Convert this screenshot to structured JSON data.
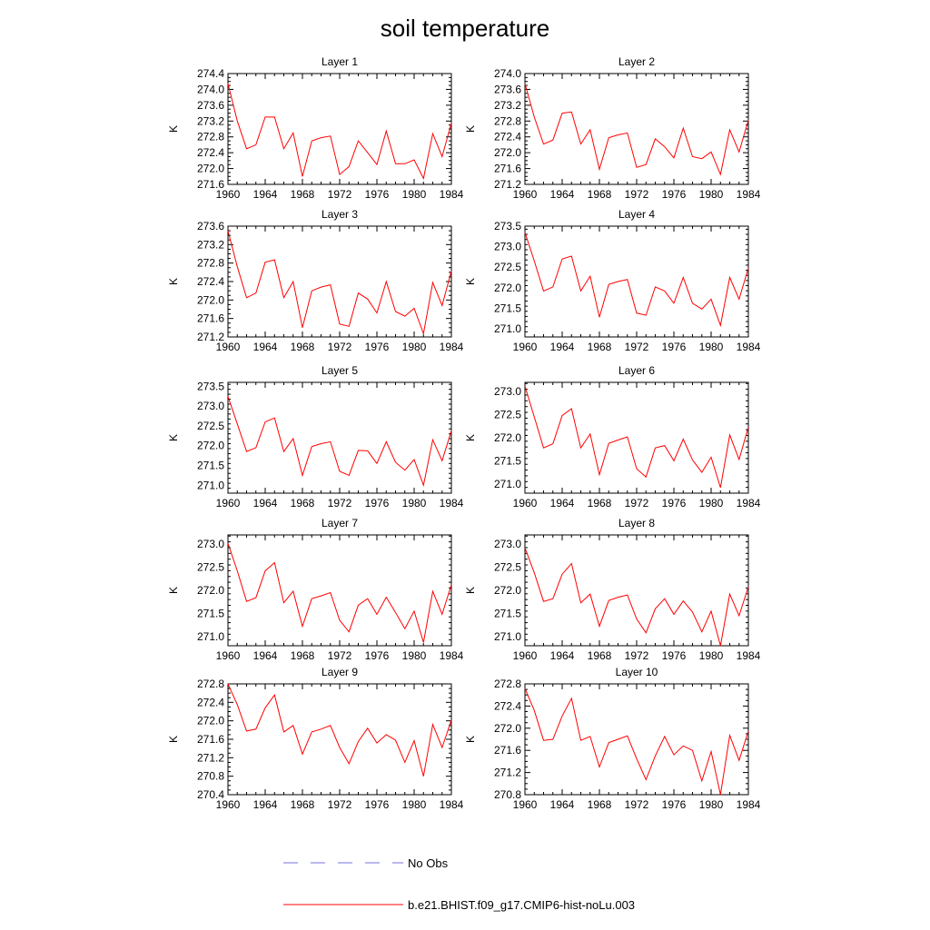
{
  "title": "soil temperature",
  "legend": {
    "items": [
      {
        "label": "No Obs",
        "color": "#7070e0",
        "dash": "dashed"
      },
      {
        "label": "b.e21.BHIST.f09_g17.CMIP6-hist-noLu.003",
        "color": "#ff0000",
        "dash": "solid"
      }
    ]
  },
  "chart_data": [
    {
      "type": "line",
      "title": "Layer 1",
      "xlabel": "",
      "ylabel": "K",
      "xlim": [
        1960,
        1984
      ],
      "ylim": [
        271.6,
        274.4
      ],
      "xticks": [
        1960,
        1964,
        1968,
        1972,
        1976,
        1980,
        1984
      ],
      "yticks": [
        "271.6",
        "272.0",
        "272.4",
        "272.8",
        "273.2",
        "273.6",
        "274.0",
        "274.4"
      ],
      "x": [
        1960,
        1961,
        1962,
        1963,
        1964,
        1965,
        1966,
        1967,
        1968,
        1969,
        1970,
        1971,
        1972,
        1973,
        1974,
        1975,
        1976,
        1977,
        1978,
        1979,
        1980,
        1981,
        1982,
        1983,
        1984
      ],
      "series": [
        {
          "name": "b.e21.BHIST.f09_g17.CMIP6-hist-noLu.003",
          "color": "#ff0000",
          "values": [
            274.15,
            273.2,
            272.5,
            272.6,
            273.3,
            273.3,
            272.5,
            272.9,
            271.8,
            272.7,
            272.78,
            272.82,
            271.85,
            272.05,
            272.7,
            272.4,
            272.1,
            272.95,
            272.12,
            272.12,
            272.22,
            271.75,
            272.88,
            272.3,
            273.15
          ]
        }
      ]
    },
    {
      "type": "line",
      "title": "Layer 2",
      "xlabel": "",
      "ylabel": "K",
      "xlim": [
        1960,
        1984
      ],
      "ylim": [
        271.2,
        274.0
      ],
      "xticks": [
        1960,
        1964,
        1968,
        1972,
        1976,
        1980,
        1984
      ],
      "yticks": [
        "271.2",
        "271.6",
        "272.0",
        "272.4",
        "272.8",
        "273.2",
        "273.6",
        "274.0"
      ],
      "x": [
        1960,
        1961,
        1962,
        1963,
        1964,
        1965,
        1966,
        1967,
        1968,
        1969,
        1970,
        1971,
        1972,
        1973,
        1974,
        1975,
        1976,
        1977,
        1978,
        1979,
        1980,
        1981,
        1982,
        1983,
        1984
      ],
      "series": [
        {
          "name": "b.e21.BHIST.f09_g17.CMIP6-hist-noLu.003",
          "color": "#ff0000",
          "values": [
            273.75,
            272.9,
            272.22,
            272.32,
            273.0,
            273.03,
            272.22,
            272.58,
            271.58,
            272.38,
            272.45,
            272.5,
            271.63,
            271.7,
            272.35,
            272.15,
            271.87,
            272.62,
            271.9,
            271.85,
            272.02,
            271.45,
            272.58,
            272.02,
            272.82
          ]
        }
      ]
    },
    {
      "type": "line",
      "title": "Layer 3",
      "xlabel": "",
      "ylabel": "K",
      "xlim": [
        1960,
        1984
      ],
      "ylim": [
        271.2,
        273.6
      ],
      "xticks": [
        1960,
        1964,
        1968,
        1972,
        1976,
        1980,
        1984
      ],
      "yticks": [
        "271.2",
        "271.6",
        "272.0",
        "272.4",
        "272.8",
        "273.2",
        "273.6"
      ],
      "x": [
        1960,
        1961,
        1962,
        1963,
        1964,
        1965,
        1966,
        1967,
        1968,
        1969,
        1970,
        1971,
        1972,
        1973,
        1974,
        1975,
        1976,
        1977,
        1978,
        1979,
        1980,
        1981,
        1982,
        1983,
        1984
      ],
      "series": [
        {
          "name": "b.e21.BHIST.f09_g17.CMIP6-hist-noLu.003",
          "color": "#ff0000",
          "values": [
            273.5,
            272.72,
            272.05,
            272.15,
            272.82,
            272.87,
            272.05,
            272.4,
            271.4,
            272.2,
            272.28,
            272.33,
            271.48,
            271.43,
            272.15,
            272.02,
            271.72,
            272.4,
            271.75,
            271.65,
            271.82,
            271.27,
            272.38,
            271.88,
            272.63
          ]
        }
      ]
    },
    {
      "type": "line",
      "title": "Layer 4",
      "xlabel": "",
      "ylabel": "K",
      "xlim": [
        1960,
        1984
      ],
      "ylim": [
        270.8,
        273.5
      ],
      "xticks": [
        1960,
        1964,
        1968,
        1972,
        1976,
        1980,
        1984
      ],
      "yticks": [
        "271.0",
        "271.5",
        "272.0",
        "272.5",
        "273.0",
        "273.5"
      ],
      "x": [
        1960,
        1961,
        1962,
        1963,
        1964,
        1965,
        1966,
        1967,
        1968,
        1969,
        1970,
        1971,
        1972,
        1973,
        1974,
        1975,
        1976,
        1977,
        1978,
        1979,
        1980,
        1981,
        1982,
        1983,
        1984
      ],
      "series": [
        {
          "name": "b.e21.BHIST.f09_g17.CMIP6-hist-noLu.003",
          "color": "#ff0000",
          "values": [
            273.35,
            272.65,
            271.92,
            272.02,
            272.7,
            272.77,
            271.92,
            272.28,
            271.28,
            272.08,
            272.15,
            272.2,
            271.38,
            271.33,
            272.02,
            271.92,
            271.62,
            272.25,
            271.62,
            271.48,
            271.72,
            271.08,
            272.25,
            271.72,
            272.48
          ]
        }
      ]
    },
    {
      "type": "line",
      "title": "Layer 5",
      "xlabel": "",
      "ylabel": "K",
      "xlim": [
        1960,
        1984
      ],
      "ylim": [
        270.8,
        273.6
      ],
      "xticks": [
        1960,
        1964,
        1968,
        1972,
        1976,
        1980,
        1984
      ],
      "yticks": [
        "271.0",
        "271.5",
        "272.0",
        "272.5",
        "273.0",
        "273.5"
      ],
      "x": [
        1960,
        1961,
        1962,
        1963,
        1964,
        1965,
        1966,
        1967,
        1968,
        1969,
        1970,
        1971,
        1972,
        1973,
        1974,
        1975,
        1976,
        1977,
        1978,
        1979,
        1980,
        1981,
        1982,
        1983,
        1984
      ],
      "series": [
        {
          "name": "b.e21.BHIST.f09_g17.CMIP6-hist-noLu.003",
          "color": "#ff0000",
          "values": [
            273.25,
            272.55,
            271.85,
            271.95,
            272.6,
            272.7,
            271.85,
            272.18,
            271.25,
            271.98,
            272.05,
            272.1,
            271.35,
            271.25,
            271.88,
            271.87,
            271.55,
            272.1,
            271.58,
            271.38,
            271.65,
            271.0,
            272.15,
            271.62,
            272.38
          ]
        }
      ]
    },
    {
      "type": "line",
      "title": "Layer 6",
      "xlabel": "",
      "ylabel": "K",
      "xlim": [
        1960,
        1984
      ],
      "ylim": [
        270.8,
        273.2
      ],
      "xticks": [
        1960,
        1964,
        1968,
        1972,
        1976,
        1980,
        1984
      ],
      "yticks": [
        "271.0",
        "271.5",
        "272.0",
        "272.5",
        "273.0"
      ],
      "x": [
        1960,
        1961,
        1962,
        1963,
        1964,
        1965,
        1966,
        1967,
        1968,
        1969,
        1970,
        1971,
        1972,
        1973,
        1974,
        1975,
        1976,
        1977,
        1978,
        1979,
        1980,
        1981,
        1982,
        1983,
        1984
      ],
      "series": [
        {
          "name": "b.e21.BHIST.f09_g17.CMIP6-hist-noLu.003",
          "color": "#ff0000",
          "values": [
            273.12,
            272.45,
            271.78,
            271.87,
            272.48,
            272.63,
            271.78,
            272.08,
            271.2,
            271.88,
            271.95,
            272.02,
            271.33,
            271.15,
            271.78,
            271.83,
            271.5,
            271.97,
            271.52,
            271.25,
            271.58,
            270.92,
            272.06,
            271.53,
            272.23
          ]
        }
      ]
    },
    {
      "type": "line",
      "title": "Layer 7",
      "xlabel": "",
      "ylabel": "K",
      "xlim": [
        1960,
        1984
      ],
      "ylim": [
        270.8,
        273.2
      ],
      "xticks": [
        1960,
        1964,
        1968,
        1972,
        1976,
        1980,
        1984
      ],
      "yticks": [
        "271.0",
        "271.5",
        "272.0",
        "272.5",
        "273.0"
      ],
      "x": [
        1960,
        1961,
        1962,
        1963,
        1964,
        1965,
        1966,
        1967,
        1968,
        1969,
        1970,
        1971,
        1972,
        1973,
        1974,
        1975,
        1976,
        1977,
        1978,
        1979,
        1980,
        1981,
        1982,
        1983,
        1984
      ],
      "series": [
        {
          "name": "b.e21.BHIST.f09_g17.CMIP6-hist-noLu.003",
          "color": "#ff0000",
          "values": [
            273.02,
            272.42,
            271.76,
            271.84,
            272.42,
            272.6,
            271.73,
            271.98,
            271.22,
            271.82,
            271.88,
            271.95,
            271.35,
            271.1,
            271.68,
            271.82,
            271.48,
            271.85,
            271.52,
            271.17,
            271.55,
            270.87,
            271.98,
            271.48,
            272.12
          ]
        }
      ]
    },
    {
      "type": "line",
      "title": "Layer 8",
      "xlabel": "",
      "ylabel": "K",
      "xlim": [
        1960,
        1984
      ],
      "ylim": [
        270.8,
        273.2
      ],
      "xticks": [
        1960,
        1964,
        1968,
        1972,
        1976,
        1980,
        1984
      ],
      "yticks": [
        "271.0",
        "271.5",
        "272.0",
        "272.5",
        "273.0"
      ],
      "x": [
        1960,
        1961,
        1962,
        1963,
        1964,
        1965,
        1966,
        1967,
        1968,
        1969,
        1970,
        1971,
        1972,
        1973,
        1974,
        1975,
        1976,
        1977,
        1978,
        1979,
        1980,
        1981,
        1982,
        1983,
        1984
      ],
      "series": [
        {
          "name": "b.e21.BHIST.f09_g17.CMIP6-hist-noLu.003",
          "color": "#ff0000",
          "values": [
            272.92,
            272.38,
            271.76,
            271.82,
            272.35,
            272.58,
            271.73,
            271.92,
            271.22,
            271.78,
            271.85,
            271.9,
            271.38,
            271.08,
            271.6,
            271.82,
            271.48,
            271.77,
            271.53,
            271.1,
            271.55,
            270.8,
            271.92,
            271.45,
            272.08
          ]
        }
      ]
    },
    {
      "type": "line",
      "title": "Layer 9",
      "xlabel": "",
      "ylabel": "K",
      "xlim": [
        1960,
        1984
      ],
      "ylim": [
        270.4,
        272.8
      ],
      "xticks": [
        1960,
        1964,
        1968,
        1972,
        1976,
        1980,
        1984
      ],
      "yticks": [
        "270.4",
        "270.8",
        "271.2",
        "271.6",
        "272.0",
        "272.4",
        "272.8"
      ],
      "x": [
        1960,
        1961,
        1962,
        1963,
        1964,
        1965,
        1966,
        1967,
        1968,
        1969,
        1970,
        1971,
        1972,
        1973,
        1974,
        1975,
        1976,
        1977,
        1978,
        1979,
        1980,
        1981,
        1982,
        1983,
        1984
      ],
      "series": [
        {
          "name": "b.e21.BHIST.f09_g17.CMIP6-hist-noLu.003",
          "color": "#ff0000",
          "values": [
            272.8,
            272.35,
            271.78,
            271.82,
            272.28,
            272.56,
            271.76,
            271.9,
            271.28,
            271.76,
            271.82,
            271.9,
            271.42,
            271.07,
            271.55,
            271.84,
            271.52,
            271.7,
            271.58,
            271.1,
            271.57,
            270.8,
            271.92,
            271.42,
            272.02
          ]
        }
      ]
    },
    {
      "type": "line",
      "title": "Layer 10",
      "xlabel": "",
      "ylabel": "K",
      "xlim": [
        1960,
        1984
      ],
      "ylim": [
        270.8,
        272.8
      ],
      "xticks": [
        1960,
        1964,
        1968,
        1972,
        1976,
        1980,
        1984
      ],
      "yticks": [
        "270.8",
        "271.2",
        "271.6",
        "272.0",
        "272.4",
        "272.8"
      ],
      "x": [
        1960,
        1961,
        1962,
        1963,
        1964,
        1965,
        1966,
        1967,
        1968,
        1969,
        1970,
        1971,
        1972,
        1973,
        1974,
        1975,
        1976,
        1977,
        1978,
        1979,
        1980,
        1981,
        1982,
        1983,
        1984
      ],
      "series": [
        {
          "name": "b.e21.BHIST.f09_g17.CMIP6-hist-noLu.003",
          "color": "#ff0000",
          "values": [
            272.72,
            272.32,
            271.78,
            271.8,
            272.22,
            272.54,
            271.78,
            271.85,
            271.3,
            271.74,
            271.8,
            271.86,
            271.45,
            271.07,
            271.5,
            271.85,
            271.52,
            271.68,
            271.6,
            271.05,
            271.58,
            270.8,
            271.87,
            271.42,
            271.95
          ]
        }
      ]
    }
  ]
}
